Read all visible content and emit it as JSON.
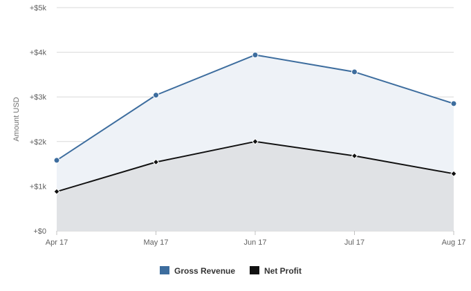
{
  "chart_data": {
    "type": "area",
    "categories": [
      "Apr 17",
      "May 17",
      "Jun 17",
      "Jul 17",
      "Aug 17"
    ],
    "series": [
      {
        "name": "Gross Revenue",
        "values": [
          1580,
          3040,
          3940,
          3560,
          2850
        ],
        "line_color": "#3d6d9e",
        "fill_color": "#eef2f7",
        "marker": "circle"
      },
      {
        "name": "Net Profit",
        "values": [
          880,
          1540,
          2000,
          1680,
          1280
        ],
        "line_color": "#111111",
        "fill_color": "#e0e2e5",
        "marker": "diamond"
      }
    ],
    "yaxis": {
      "label": "Amount USD",
      "min": 0,
      "max": 5000,
      "ticks": [
        0,
        1000,
        2000,
        3000,
        4000,
        5000
      ],
      "tick_labels": [
        "+$0",
        "+$1k",
        "+$2k",
        "+$3k",
        "+$4k",
        "+$5k"
      ]
    },
    "xlabel": "",
    "grid": true,
    "legend": {
      "placement": "bottom-center",
      "legend_colors": [
        "#3d6d9e",
        "#111111"
      ]
    }
  }
}
